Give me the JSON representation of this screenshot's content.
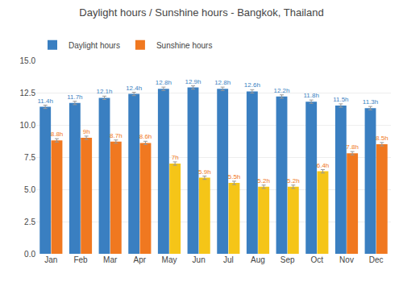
{
  "chart_data": {
    "type": "bar",
    "title": "Daylight hours / Sunshine hours - Bangkok, Thailand",
    "categories": [
      "Jan",
      "Feb",
      "Mar",
      "Apr",
      "May",
      "Jun",
      "Jul",
      "Aug",
      "Sep",
      "Oct",
      "Nov",
      "Dec"
    ],
    "series": [
      {
        "name": "Daylight hours",
        "color": "#3a7fc1",
        "values": [
          11.4,
          11.7,
          12.1,
          12.4,
          12.8,
          12.9,
          12.8,
          12.6,
          12.2,
          11.8,
          11.5,
          11.3
        ],
        "value_labels": [
          "11.4h",
          "11.7h",
          "12.1h",
          "12.4h",
          "12.8h",
          "12.9h",
          "12.8h",
          "12.6h",
          "12.2h",
          "11.8h",
          "11.5h",
          "11.3h"
        ],
        "errors": [
          0.13,
          0.13,
          0.13,
          0.13,
          0.13,
          0.13,
          0.13,
          0.13,
          0.13,
          0.13,
          0.13,
          0.13
        ]
      },
      {
        "name": "Sunshine hours",
        "color": "#f07820",
        "colors": [
          "#f07820",
          "#f07820",
          "#f07820",
          "#f07820",
          "#f5c518",
          "#f5c518",
          "#f5c518",
          "#f5c518",
          "#f5c518",
          "#f5c518",
          "#f07820",
          "#f07820"
        ],
        "values": [
          8.8,
          9.0,
          8.7,
          8.6,
          7.0,
          5.9,
          5.5,
          5.2,
          5.2,
          6.4,
          7.8,
          8.5
        ],
        "value_labels": [
          "8.8h",
          "9h",
          "8.7h",
          "8.6h",
          "7h",
          "5.9h",
          "5.5h",
          "5.2h",
          "5.2h",
          "6.4h",
          "7.8h",
          "8.5h"
        ],
        "errors": [
          0.13,
          0.13,
          0.13,
          0.13,
          0.13,
          0.13,
          0.13,
          0.13,
          0.13,
          0.13,
          0.13,
          0.13
        ]
      }
    ],
    "ylim": [
      0,
      15.0
    ],
    "yticks": [
      {
        "value": 0,
        "label": "0.0"
      },
      2.5,
      {
        "value": 5,
        "label": "5.0"
      },
      7.5,
      {
        "value": 10,
        "label": "10.0"
      },
      12.5,
      {
        "value": 15,
        "label": "15.0"
      }
    ],
    "grid": true,
    "legend": "top-left",
    "data_labels": true
  }
}
